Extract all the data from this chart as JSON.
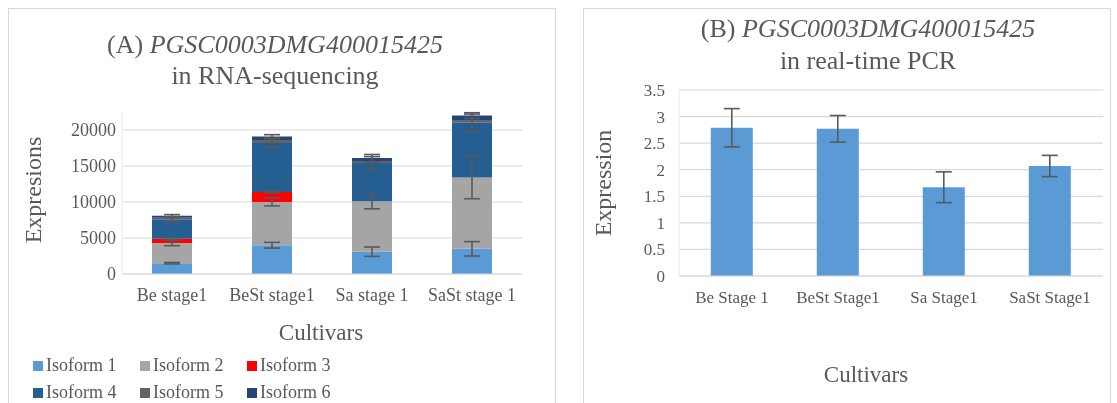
{
  "chart_data": [
    {
      "type": "bar",
      "stacked": true,
      "title": "(A) PGSC0003DMG400015425\nin RNA-sequencing",
      "xlabel": "Cultivars",
      "ylabel": "Expresions",
      "categories": [
        "Be stage1",
        "BeSt stage1",
        "Sa stage 1",
        "SaSt stage 1"
      ],
      "series": [
        {
          "name": "Isoform 1",
          "color": "#5b9bd5",
          "values": [
            1500,
            4000,
            3100,
            3500
          ],
          "errors": [
            100,
            400,
            650,
            1000
          ]
        },
        {
          "name": "Isoform 2",
          "color": "#a5a5a5",
          "values": [
            2800,
            6000,
            7000,
            9900
          ],
          "errors": [
            370,
            550,
            1050,
            2950
          ]
        },
        {
          "name": "Isoform 3",
          "color": "#ff0000",
          "values": [
            600,
            1400,
            0,
            0
          ],
          "errors": [
            150,
            150,
            null,
            null
          ]
        },
        {
          "name": "Isoform 4",
          "color": "#255e91",
          "values": [
            2700,
            6800,
            5300,
            7600
          ],
          "errors": [
            300,
            600,
            900,
            1200
          ]
        },
        {
          "name": "Isoform 5",
          "color": "#636363",
          "values": [
            200,
            400,
            300,
            300
          ],
          "errors": [
            null,
            null,
            null,
            null
          ]
        },
        {
          "name": "Isoform 6",
          "color": "#264478",
          "values": [
            300,
            500,
            400,
            700
          ],
          "errors": [
            150,
            250,
            500,
            400
          ]
        }
      ],
      "ylim": [
        0,
        22500
      ],
      "yticks": [
        0,
        5000,
        10000,
        15000,
        20000
      ],
      "grid": "y",
      "legend": "bottom"
    },
    {
      "type": "bar",
      "title": "(B) PGSC0003DMG400015425\nin real-time PCR",
      "xlabel": "Cultivars",
      "ylabel": "Expression",
      "categories": [
        "Be Stage 1",
        "BeSt Stage1",
        "Sa Stage1",
        "SaSt Stage1"
      ],
      "values": [
        2.79,
        2.77,
        1.67,
        2.07
      ],
      "errors": [
        0.36,
        0.25,
        0.29,
        0.2
      ],
      "color": "#5b9bd5",
      "ylim": [
        0,
        3.5
      ],
      "yticks": [
        0,
        0.5,
        1,
        1.5,
        2,
        2.5,
        3,
        3.5
      ],
      "grid": "y"
    }
  ]
}
